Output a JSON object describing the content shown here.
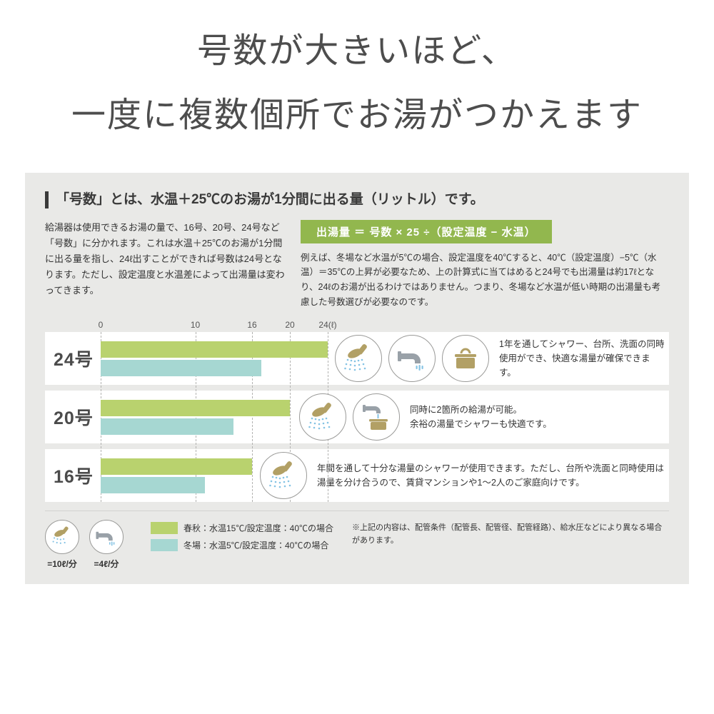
{
  "title": {
    "line1": "号数が大きいほど、",
    "line2": "一度に複数個所でお湯がつかえます"
  },
  "panel": {
    "heading": "「号数」とは、水温＋25℃のお湯が1分間に出る量（リットル）です。",
    "intro": "給湯器は使用できるお湯の量で、16号、20号、24号など「号数」に分かれます。これは水温＋25℃のお湯が1分間に出る量を指し、24ℓ出すことができれば号数は24号となります。ただし、設定温度と水温差によって出湯量は変わってきます。",
    "formula": "出湯量 ＝ 号数 × 25 ÷（設定温度 − 水温）",
    "formula_note": "例えば、冬場など水温が5℃の場合、設定温度を40℃すると、40℃（設定温度）−5℃（水温）＝35℃の上昇が必要なため、上の計算式に当てはめると24号でも出湯量は約17ℓとなり、24ℓのお湯が出るわけではありません。つまり、冬場など水温が低い時期の出湯量も考慮した号数選びが必要なのです。"
  },
  "chart_data": {
    "type": "bar",
    "orientation": "horizontal",
    "categories": [
      "24号",
      "20号",
      "16号"
    ],
    "series": [
      {
        "name": "春秋：水温15℃/設定温度：40℃の場合",
        "values": [
          24,
          20,
          16
        ],
        "color": "#b9d26e"
      },
      {
        "name": "冬場：水温5℃/設定温度：40℃の場合",
        "values": [
          17,
          14,
          11
        ],
        "color": "#a6d7d2"
      }
    ],
    "x_ticks": [
      "0",
      "10",
      "16",
      "20",
      "24(ℓ)"
    ],
    "x_tick_values": [
      0,
      10,
      16,
      20,
      24
    ],
    "xlim": [
      0,
      24
    ],
    "grid": "dashed-vertical"
  },
  "rows": [
    {
      "label": "24号",
      "icons": [
        "shower-icon",
        "faucet-icon",
        "pot-icon"
      ],
      "desc": "1年を通してシャワー、台所、洗面の同時使用ができ、快適な湯量が確保できます。"
    },
    {
      "label": "20号",
      "icons": [
        "shower-icon",
        "faucet-pot-icon"
      ],
      "desc": "同時に2箇所の給湯が可能。\n余裕の湯量でシャワーも快適です。"
    },
    {
      "label": "16号",
      "icons": [
        "shower-icon"
      ],
      "desc": "年間を通して十分な湯量のシャワーが使用できます。ただし、台所や洗面と同時使用は湯量を分け合うので、賃貸マンションや1〜2人のご家庭向けです。"
    }
  ],
  "legend": {
    "shower_label": "=10ℓ/分",
    "faucet_label": "=4ℓ/分",
    "spring_label": "春秋：水温15℃/設定温度：40℃の場合",
    "winter_label": "冬場：水温5℃/設定温度：40℃の場合",
    "note": "※上記の内容は、配管条件（配管長、配管径、配管経路）、給水圧などにより異なる場合があります。"
  },
  "colors": {
    "panel_bg": "#e9e9e7",
    "badge_green": "#92b74e",
    "bar_green": "#b9d26e",
    "bar_teal": "#a6d7d2",
    "icon_gold": "#b2a065",
    "icon_gray": "#99a1a8",
    "water_blue": "#85c3e4"
  }
}
